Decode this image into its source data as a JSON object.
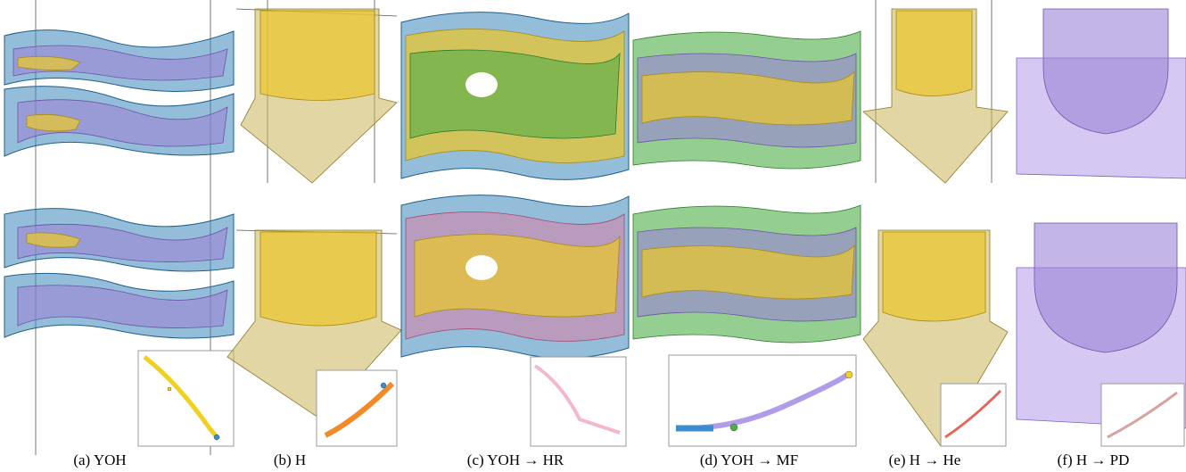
{
  "figure": {
    "panels": [
      {
        "caption": "(a) YOH"
      },
      {
        "caption": "(b) H"
      },
      {
        "caption": "(c) YOH → HR"
      },
      {
        "caption": "(d) YOH → MF"
      },
      {
        "caption": "(e) H → He"
      },
      {
        "caption": "(f) H → PD"
      }
    ]
  }
}
